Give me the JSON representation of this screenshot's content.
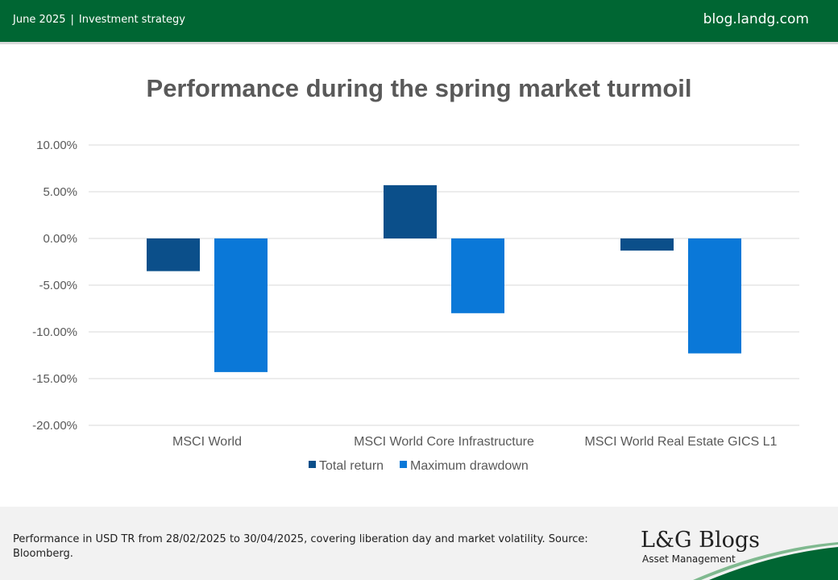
{
  "header": {
    "date": "June 2025",
    "separator": "|",
    "category": "Investment strategy",
    "site": "blog.landg.com"
  },
  "chart_data": {
    "type": "bar",
    "title": "Performance during the spring market turmoil",
    "categories": [
      "MSCI World",
      "MSCI World Core Infrastructure",
      "MSCI World Real Estate GICS L1"
    ],
    "series": [
      {
        "name": "Total return",
        "color": "#0b4f8a",
        "values": [
          -3.5,
          5.7,
          -1.3
        ]
      },
      {
        "name": "Maximum drawdown",
        "color": "#0a78d8",
        "values": [
          -14.3,
          -8.0,
          -12.3
        ]
      }
    ],
    "y_ticks": [
      "10.00%",
      "5.00%",
      "0.00%",
      "-5.00%",
      "-10.00%",
      "-15.00%",
      "-20.00%"
    ],
    "ylim": [
      -20,
      10
    ],
    "y_unit": "%",
    "grid": true,
    "legend": "bottom"
  },
  "footer": {
    "note": "Performance in USD TR from 28/02/2025 to 30/04/2025, covering liberation day and market volatility. Source: Bloomberg.",
    "logo": "L&G Blogs",
    "logo_sub": "Asset Management",
    "accent": "#006633"
  }
}
